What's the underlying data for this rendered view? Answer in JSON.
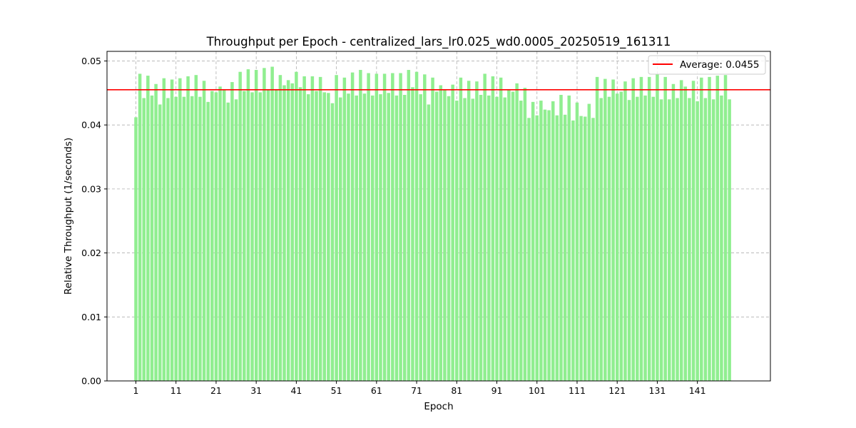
{
  "chart_data": {
    "type": "bar",
    "title": "Throughput per Epoch - centralized_lars_lr0.025_wd0.0005_20250519_161311",
    "xlabel": "Epoch",
    "ylabel": "Relative Throughput (1/seconds)",
    "x_start": 1,
    "xticks": [
      1,
      11,
      21,
      31,
      41,
      51,
      61,
      71,
      81,
      91,
      101,
      111,
      121,
      131,
      141
    ],
    "yticks": [
      "0.00",
      "0.01",
      "0.02",
      "0.03",
      "0.04",
      "0.05"
    ],
    "ylim": [
      0,
      0.0515
    ],
    "xlim": [
      -7.2,
      158.2
    ],
    "grid": true,
    "bar_color": "#90ee90",
    "average": {
      "value": 0.0455,
      "label": "Average: 0.0455",
      "color": "#ff0000"
    },
    "legend_position": "top-right",
    "values": [
      0.0412,
      0.048,
      0.0442,
      0.0477,
      0.0446,
      0.0464,
      0.0432,
      0.0473,
      0.0442,
      0.0471,
      0.0444,
      0.0473,
      0.0444,
      0.0476,
      0.0445,
      0.0478,
      0.0444,
      0.0469,
      0.0436,
      0.0453,
      0.0451,
      0.046,
      0.0455,
      0.0435,
      0.0467,
      0.044,
      0.0483,
      0.0453,
      0.0487,
      0.0451,
      0.0486,
      0.0451,
      0.0489,
      0.0455,
      0.0491,
      0.0456,
      0.0478,
      0.0462,
      0.047,
      0.0465,
      0.0483,
      0.0459,
      0.0476,
      0.0448,
      0.0476,
      0.0453,
      0.0475,
      0.0451,
      0.045,
      0.0434,
      0.0478,
      0.0443,
      0.0474,
      0.0449,
      0.0482,
      0.0446,
      0.0486,
      0.0449,
      0.0481,
      0.0446,
      0.048,
      0.0448,
      0.048,
      0.045,
      0.0481,
      0.0446,
      0.0481,
      0.0447,
      0.0486,
      0.0459,
      0.0483,
      0.0448,
      0.0479,
      0.0432,
      0.0474,
      0.0452,
      0.0462,
      0.0455,
      0.0445,
      0.0463,
      0.0438,
      0.0474,
      0.0442,
      0.0469,
      0.0441,
      0.0468,
      0.0447,
      0.048,
      0.0446,
      0.0476,
      0.0444,
      0.0474,
      0.0443,
      0.0455,
      0.0452,
      0.0465,
      0.0438,
      0.0458,
      0.0411,
      0.0436,
      0.0415,
      0.0438,
      0.0424,
      0.0423,
      0.0437,
      0.0415,
      0.0447,
      0.0416,
      0.0446,
      0.0407,
      0.0435,
      0.0414,
      0.0413,
      0.0433,
      0.0411,
      0.0475,
      0.0442,
      0.0472,
      0.0444,
      0.0471,
      0.0449,
      0.0452,
      0.0468,
      0.0439,
      0.0473,
      0.0444,
      0.0475,
      0.0446,
      0.0475,
      0.0444,
      0.0479,
      0.044,
      0.0475,
      0.044,
      0.0464,
      0.0442,
      0.047,
      0.046,
      0.0442,
      0.0469,
      0.0437,
      0.0474,
      0.0442,
      0.0475,
      0.044,
      0.0477,
      0.0446,
      0.0478,
      0.044
    ]
  }
}
